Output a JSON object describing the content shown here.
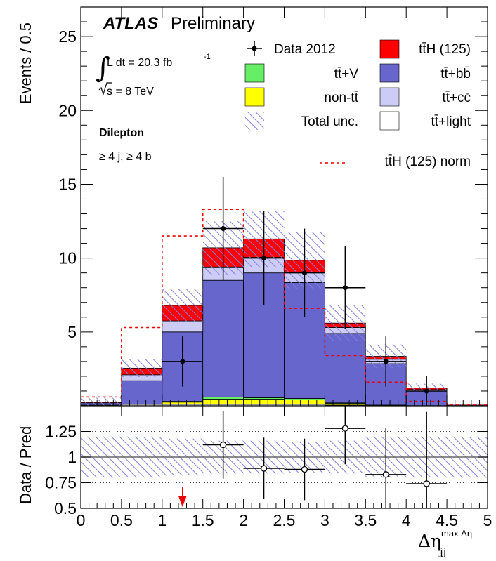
{
  "header": {
    "brand": "ATLAS",
    "label": "Preliminary",
    "lumi_prefix": "L dt = 20.3 fb",
    "lumi_exp": "-1",
    "energy": "s = 8 TeV",
    "channel": "Dilepton",
    "selection": "≥ 4 j, ≥ 4 b"
  },
  "legend": {
    "data": "Data 2012",
    "tth": "tt̄H (125)",
    "ttv": "tt̄+V",
    "ttbb": "tt̄+bb̄",
    "nontt": "non-tt̄",
    "ttcc": "tt̄+cc̄",
    "unc": "Total unc.",
    "ttlight": "tt̄+light",
    "tthnorm": "tt̄H (125) norm"
  },
  "colors": {
    "ttlight": "#ffffff",
    "ttcc": "#ccccf7",
    "ttbb": "#6666cc",
    "nontt": "#ffff00",
    "ttv": "#66ee66",
    "tth": "#ff0000",
    "unc_hatch": "#8080dd",
    "norm_line": "#ee0000"
  },
  "chart_data": [
    {
      "type": "bar",
      "stacked": true,
      "ylabel": "Events / 0.5",
      "xlim": [
        0,
        5
      ],
      "ylim": [
        0,
        27
      ],
      "yticks": [
        5,
        10,
        15,
        20,
        25
      ],
      "bin_edges": [
        0,
        0.5,
        1,
        1.5,
        2,
        2.5,
        3,
        3.5,
        4,
        4.5,
        5
      ],
      "series": [
        {
          "name": "tt̄+light",
          "key": "ttlight",
          "values": [
            0.05,
            0.1,
            0.1,
            0.1,
            0.1,
            0.1,
            0.05,
            0.05,
            0.0,
            0.0
          ]
        },
        {
          "name": "non-tt̄",
          "key": "nontt",
          "values": [
            0.0,
            0.0,
            0.15,
            0.35,
            0.35,
            0.3,
            0.1,
            0.0,
            0.0,
            0.0
          ]
        },
        {
          "name": "tt̄+V",
          "key": "ttv",
          "values": [
            0.0,
            0.0,
            0.05,
            0.15,
            0.1,
            0.1,
            0.05,
            0.0,
            0.0,
            0.0
          ]
        },
        {
          "name": "tt̄+bb̄",
          "key": "ttbb",
          "values": [
            0.15,
            1.6,
            4.7,
            7.9,
            8.45,
            7.85,
            4.7,
            2.8,
            1.0,
            0.05
          ]
        },
        {
          "name": "tt̄+cc̄",
          "key": "ttcc",
          "values": [
            0.0,
            0.4,
            0.75,
            0.9,
            1.05,
            0.7,
            0.4,
            0.3,
            0.1,
            0.0
          ]
        },
        {
          "name": "tt̄H (125)",
          "key": "tth",
          "values": [
            0.05,
            0.45,
            1.05,
            1.3,
            1.25,
            0.8,
            0.3,
            0.2,
            0.1,
            0.0
          ]
        }
      ],
      "total_unc_halfwidth": [
        0.3,
        0.6,
        1.1,
        1.8,
        1.9,
        1.9,
        1.2,
        0.8,
        0.3,
        0.05
      ],
      "tth_norm": [
        0.6,
        5.3,
        11.5,
        13.3,
        10.2,
        6.6,
        3.4,
        1.6,
        0.3,
        0.05
      ],
      "data": {
        "name": "Data 2012",
        "x": [
          1.25,
          1.75,
          2.25,
          2.75,
          3.25,
          3.75,
          4.25
        ],
        "y": [
          3,
          12,
          10,
          9,
          8,
          3,
          1
        ],
        "yerr": [
          1.7,
          3.5,
          3.2,
          3.0,
          2.8,
          1.7,
          1.0
        ]
      }
    },
    {
      "type": "scatter",
      "ylabel": "Data / Pred",
      "xlabel_main": "Δη",
      "xlabel_sub": "jj",
      "xlabel_sup": "max Δη",
      "xlim": [
        0,
        5
      ],
      "ylim": [
        0.5,
        1.5
      ],
      "yticks": [
        0.5,
        0.75,
        1,
        1.25
      ],
      "ytick_labels": [
        "0.5",
        "0.75",
        "1",
        "1.25"
      ],
      "xticks": [
        0,
        0.5,
        1,
        1.5,
        2,
        2.5,
        3,
        3.5,
        4,
        4.5,
        5
      ],
      "xtick_labels": [
        "0",
        "0.5",
        "1",
        "1.5",
        "2",
        "2.5",
        "3",
        "3.5",
        "4",
        "4.5",
        "5"
      ],
      "gridlines_y": [
        0.75,
        1,
        1.25
      ],
      "unc_band_halfwidth": [
        0.2,
        0.2,
        0.18,
        0.16,
        0.16,
        0.15,
        0.16,
        0.2,
        0.2,
        0.2
      ],
      "x": [
        1.75,
        2.25,
        2.75,
        3.25,
        3.75,
        4.25
      ],
      "y": [
        1.12,
        0.89,
        0.88,
        1.28,
        0.83,
        0.74
      ],
      "yerr": [
        0.33,
        0.3,
        0.3,
        0.35,
        0.45,
        0.7
      ],
      "offscale_arrow_x": 1.25
    }
  ]
}
